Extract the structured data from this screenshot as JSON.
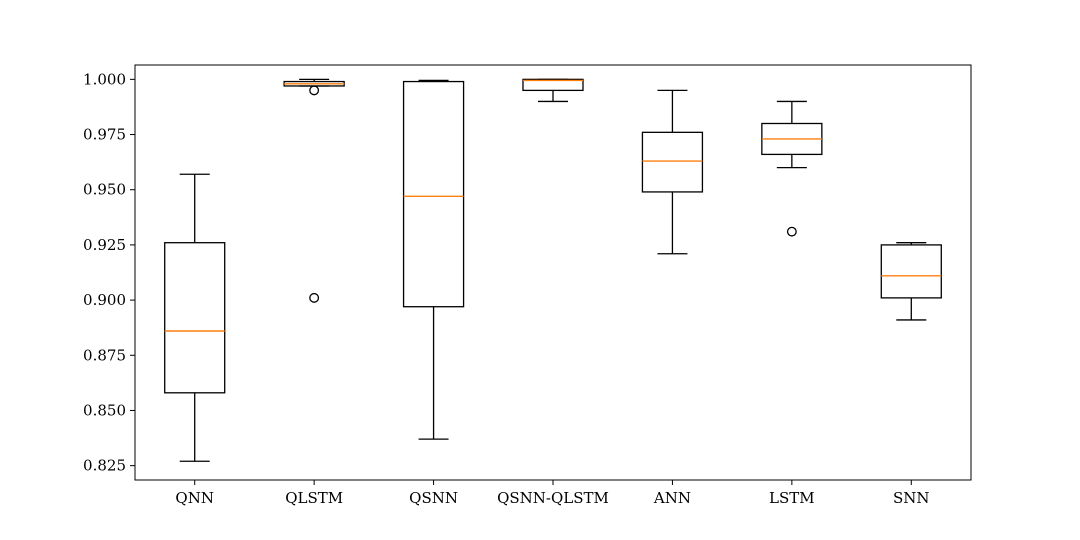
{
  "chart_data": {
    "type": "box",
    "title": "",
    "xlabel": "",
    "ylabel": "",
    "ylim": [
      0.8185,
      1.0065
    ],
    "yticks": [
      0.825,
      0.85,
      0.875,
      0.9,
      0.925,
      0.95,
      0.975,
      1.0
    ],
    "ytick_labels": [
      "0.825",
      "0.850",
      "0.875",
      "0.900",
      "0.925",
      "0.950",
      "0.975",
      "1.000"
    ],
    "grid": false,
    "colors": {
      "box": "#000000",
      "median": "#ff7f0e",
      "background": "#ffffff"
    },
    "categories": [
      "QNN",
      "QLSTM",
      "QSNN",
      "QSNN-QLSTM",
      "ANN",
      "LSTM",
      "SNN"
    ],
    "boxes": [
      {
        "name": "QNN",
        "whisker_low": 0.827,
        "q1": 0.858,
        "median": 0.886,
        "q3": 0.926,
        "whisker_high": 0.957,
        "outliers": []
      },
      {
        "name": "QLSTM",
        "whisker_low": 0.997,
        "q1": 0.997,
        "median": 0.998,
        "q3": 0.999,
        "whisker_high": 1.0,
        "outliers": [
          0.995,
          0.901
        ]
      },
      {
        "name": "QSNN",
        "whisker_low": 0.837,
        "q1": 0.897,
        "median": 0.947,
        "q3": 0.999,
        "whisker_high": 0.9995,
        "outliers": []
      },
      {
        "name": "QSNN-QLSTM",
        "whisker_low": 0.99,
        "q1": 0.995,
        "median": 0.9995,
        "q3": 1.0,
        "whisker_high": 1.0,
        "outliers": []
      },
      {
        "name": "ANN",
        "whisker_low": 0.921,
        "q1": 0.949,
        "median": 0.963,
        "q3": 0.976,
        "whisker_high": 0.995,
        "outliers": []
      },
      {
        "name": "LSTM",
        "whisker_low": 0.96,
        "q1": 0.966,
        "median": 0.973,
        "q3": 0.98,
        "whisker_high": 0.99,
        "outliers": [
          0.931
        ]
      },
      {
        "name": "SNN",
        "whisker_low": 0.891,
        "q1": 0.901,
        "median": 0.911,
        "q3": 0.925,
        "whisker_high": 0.926,
        "outliers": []
      }
    ]
  }
}
